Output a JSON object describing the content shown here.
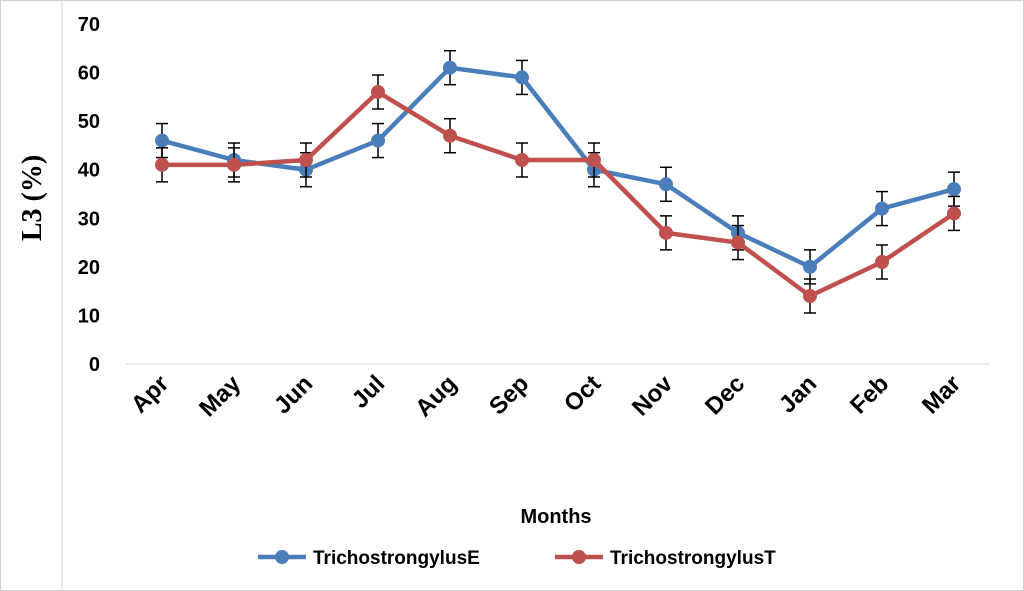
{
  "chart_data": {
    "type": "line",
    "title": "",
    "xlabel": "Months",
    "ylabel": "L3 (%)",
    "ylim": [
      0,
      70
    ],
    "yticks": [
      0,
      10,
      20,
      30,
      40,
      50,
      60,
      70
    ],
    "grid": false,
    "legend_position": "bottom",
    "categories": [
      "Apr",
      "May",
      "Jun",
      "Jul",
      "Aug",
      "Sep",
      "Oct",
      "Nov",
      "Dec",
      "Jan",
      "Feb",
      "Mar"
    ],
    "series": [
      {
        "name": "TrichostrongylusE",
        "color": "#4a7ebb",
        "values": [
          46,
          42,
          40,
          46,
          61,
          59,
          40,
          37,
          27,
          20,
          32,
          36
        ],
        "error": [
          3.5,
          3.5,
          3.5,
          3.5,
          3.5,
          3.5,
          3.5,
          3.5,
          3.5,
          3.5,
          3.5,
          3.5
        ]
      },
      {
        "name": "TrichostrongylusT",
        "color": "#c0504d",
        "values": [
          41,
          41,
          42,
          56,
          47,
          42,
          42,
          27,
          25,
          14,
          21,
          31
        ],
        "error": [
          3.5,
          3.5,
          3.5,
          3.5,
          3.5,
          3.5,
          3.5,
          3.5,
          3.5,
          3.5,
          3.5,
          3.5
        ]
      }
    ]
  }
}
